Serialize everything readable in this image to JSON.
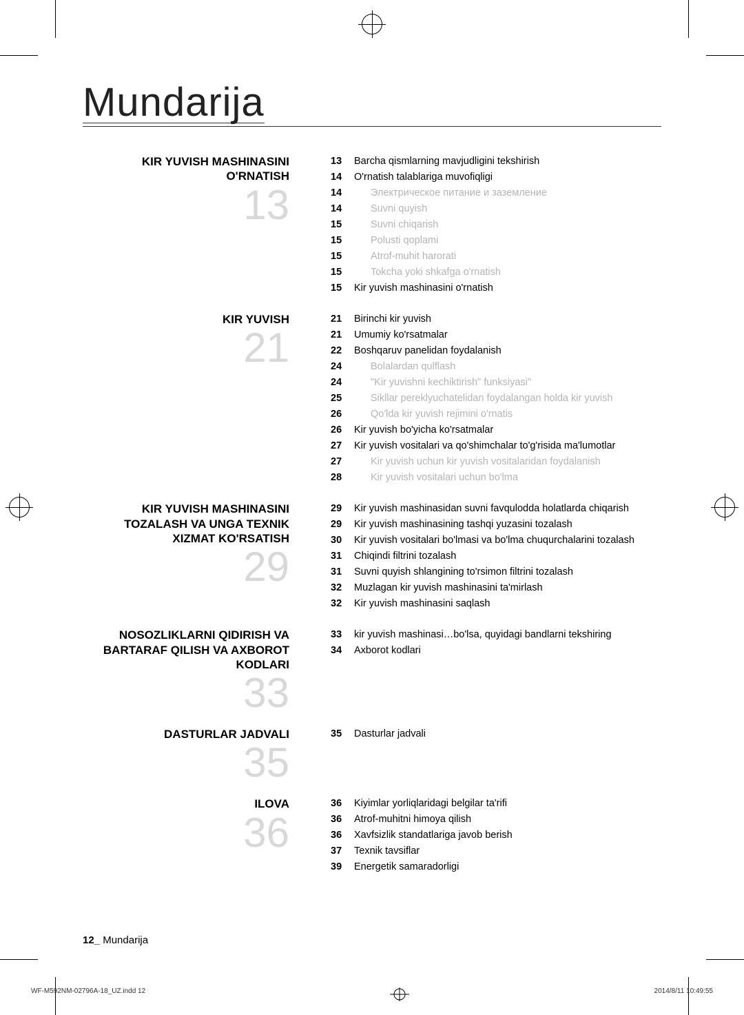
{
  "title": "Mundarija",
  "footer": {
    "page_num": "12_",
    "label": "Mundarija"
  },
  "print": {
    "file": "WF-M592NM-02796A-18_UZ.indd   12",
    "date": "2014/8/11   10:49:55"
  },
  "sections": [
    {
      "heading": "KIR YUVISH MASHINASINI O'RNATISH",
      "big_number": "13",
      "entries": [
        {
          "page": "13",
          "text": "Barcha qismlarning mavjudligini tekshirish",
          "sub": false
        },
        {
          "page": "14",
          "text": "O'rnatish talablariga muvofiqligi",
          "sub": false
        },
        {
          "page": "14",
          "text": "Электрическое питание и заземление",
          "sub": true
        },
        {
          "page": "14",
          "text": "Suvni quyish",
          "sub": true
        },
        {
          "page": "15",
          "text": "Suvni chiqarish",
          "sub": true
        },
        {
          "page": "15",
          "text": "Polusti qoplami",
          "sub": true
        },
        {
          "page": "15",
          "text": "Atrof-muhit harorati",
          "sub": true
        },
        {
          "page": "15",
          "text": "Tokcha yoki shkafga o'rnatish",
          "sub": true
        },
        {
          "page": "15",
          "text": "Kir yuvish mashinasini o'rnatish",
          "sub": false
        }
      ]
    },
    {
      "heading": "KIR YUVISH",
      "big_number": "21",
      "entries": [
        {
          "page": "21",
          "text": "Birinchi kir yuvish",
          "sub": false
        },
        {
          "page": "21",
          "text": "Umumiy ko'rsatmalar",
          "sub": false
        },
        {
          "page": "22",
          "text": "Boshqaruv panelidan foydalanish",
          "sub": false
        },
        {
          "page": "24",
          "text": "Bolalardan qulflash",
          "sub": true
        },
        {
          "page": "24",
          "text": "\"Kir yuvishni kechiktirish\" funksiyasi\"",
          "sub": true
        },
        {
          "page": "25",
          "text": "Sikllar pereklyuchatelidan foydalangan holda kir yuvish",
          "sub": true
        },
        {
          "page": "26",
          "text": "Qo'lda kir yuvish rejimini o'rnatis",
          "sub": true
        },
        {
          "page": "26",
          "text": "Kir yuvish bo'yicha ko'rsatmalar",
          "sub": false
        },
        {
          "page": "27",
          "text": "Kir yuvish vositalari va qo'shimchalar to'g'risida ma'lumotlar",
          "sub": false
        },
        {
          "page": "27",
          "text": "Kir yuvish uchun kir yuvish vositalaridan foydalanish",
          "sub": true
        },
        {
          "page": "28",
          "text": "Kir yuvish vositalari uchun bo'lma",
          "sub": true
        }
      ]
    },
    {
      "heading": "KIR YUVISH MASHINASINI TOZALASH VA UNGA TEXNIK XIZMAT KO'RSATISH",
      "big_number": "29",
      "entries": [
        {
          "page": "29",
          "text": "Kir yuvish mashinasidan suvni favqulodda holatlarda chiqarish",
          "sub": false
        },
        {
          "page": "29",
          "text": "Kir yuvish mashinasining tashqi yuzasini tozalash",
          "sub": false
        },
        {
          "page": "30",
          "text": "Kir yuvish vositalari bo'lmasi va bo'lma chuqurchalarini tozalash",
          "sub": false
        },
        {
          "page": "31",
          "text": "Chiqindi filtrini tozalash",
          "sub": false
        },
        {
          "page": "31",
          "text": "Suvni quyish shlangining to'rsimon filtrini tozalash",
          "sub": false
        },
        {
          "page": "32",
          "text": "Muzlagan kir yuvish mashinasini ta'mirlash",
          "sub": false
        },
        {
          "page": "32",
          "text": "Kir yuvish mashinasini saqlash",
          "sub": false
        }
      ]
    },
    {
      "heading": "NOSOZLIKLARNI QIDIRISH VA BARTARAF QILISH VA AXBOROT KODLARI",
      "big_number": "33",
      "entries": [
        {
          "page": "33",
          "text": "kir yuvish mashinasi…bo'lsa, quyidagi bandlarni tekshiring",
          "sub": false
        },
        {
          "page": "34",
          "text": "Axborot kodlari",
          "sub": false
        }
      ]
    },
    {
      "heading": "DASTURLAR JADVALI",
      "big_number": "35",
      "entries": [
        {
          "page": "35",
          "text": "Dasturlar jadvali",
          "sub": false
        }
      ]
    },
    {
      "heading": "ILOVA",
      "big_number": "36",
      "entries": [
        {
          "page": "36",
          "text": "Kiyimlar yorliqlaridagi belgilar ta'rifi",
          "sub": false
        },
        {
          "page": "36",
          "text": "Atrof-muhitni himoya qilish",
          "sub": false
        },
        {
          "page": "36",
          "text": "Xavfsizlik standatlariga javob berish",
          "sub": false
        },
        {
          "page": "37",
          "text": "Texnik tavsiflar",
          "sub": false
        },
        {
          "page": "39",
          "text": "Energetik samaradorligi",
          "sub": false
        }
      ]
    }
  ]
}
